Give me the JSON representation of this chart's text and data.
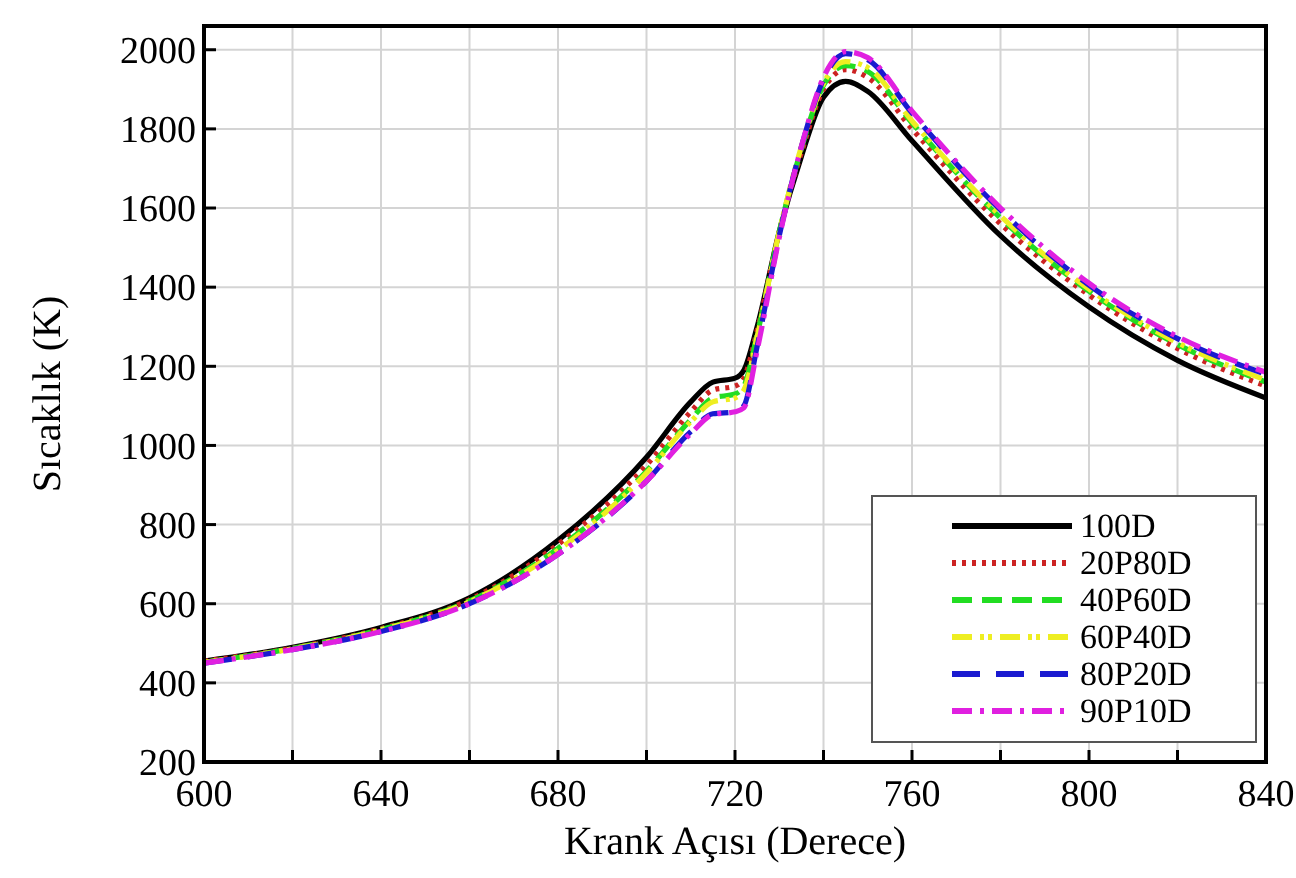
{
  "chart_data": {
    "type": "line",
    "xlabel": "Krank Açısı (Derece)",
    "ylabel": "Sıcaklık (K)",
    "x": [
      600,
      620,
      640,
      660,
      680,
      700,
      710,
      715,
      720,
      722,
      725,
      730,
      735,
      740,
      745,
      750,
      760,
      780,
      800,
      820,
      840
    ],
    "xlim": [
      600,
      840
    ],
    "xticks": [
      600,
      {
        "value": 620,
        "label": null
      },
      640,
      {
        "value": 660,
        "label": null
      },
      680,
      {
        "value": 700,
        "label": null
      },
      720,
      {
        "value": 740,
        "label": null
      },
      760,
      {
        "value": 780,
        "label": null
      },
      800,
      {
        "value": 820,
        "label": null
      },
      840
    ],
    "ylim": [
      200,
      2060
    ],
    "yticks": [
      200,
      400,
      600,
      800,
      1000,
      1200,
      1400,
      1600,
      1800,
      2000
    ],
    "grid": true,
    "legend": "bottom right",
    "marker": "none",
    "series": [
      {
        "name": "100D",
        "color": "#000000",
        "line_style": "solid",
        "values": [
          455,
          490,
          540,
          615,
          760,
          970,
          1110,
          1160,
          1170,
          1190,
          1300,
          1540,
          1730,
          1880,
          1920,
          1895,
          1770,
          1530,
          1350,
          1215,
          1120
        ]
      },
      {
        "name": "20P80D",
        "color": "#cc2222",
        "line_style": "dotted",
        "values": [
          455,
          488,
          537,
          610,
          750,
          950,
          1085,
          1140,
          1150,
          1170,
          1290,
          1540,
          1740,
          1900,
          1950,
          1930,
          1800,
          1560,
          1380,
          1245,
          1150
        ]
      },
      {
        "name": "40P60D",
        "color": "#22dd22",
        "line_style": "dashed",
        "values": [
          452,
          487,
          535,
          607,
          740,
          935,
          1065,
          1120,
          1130,
          1150,
          1280,
          1540,
          1750,
          1910,
          1960,
          1945,
          1815,
          1575,
          1390,
          1255,
          1160
        ]
      },
      {
        "name": "60P40D",
        "color": "#eeee22",
        "line_style": "dashed",
        "values": [
          452,
          486,
          534,
          605,
          735,
          930,
          1060,
          1110,
          1120,
          1140,
          1275,
          1540,
          1755,
          1915,
          1970,
          1955,
          1820,
          1580,
          1395,
          1260,
          1165
        ]
      },
      {
        "name": "80P20D",
        "color": "#1a1ad0",
        "line_style": "dashed",
        "values": [
          450,
          484,
          530,
          600,
          725,
          910,
          1035,
          1080,
          1085,
          1100,
          1250,
          1530,
          1755,
          1925,
          1990,
          1975,
          1840,
          1595,
          1405,
          1270,
          1180
        ]
      },
      {
        "name": "90P10D",
        "color": "#e020e0",
        "line_style": "dashed",
        "values": [
          450,
          484,
          530,
          600,
          725,
          910,
          1030,
          1078,
          1085,
          1095,
          1240,
          1525,
          1755,
          1930,
          1995,
          1980,
          1845,
          1600,
          1410,
          1275,
          1185
        ]
      }
    ]
  }
}
